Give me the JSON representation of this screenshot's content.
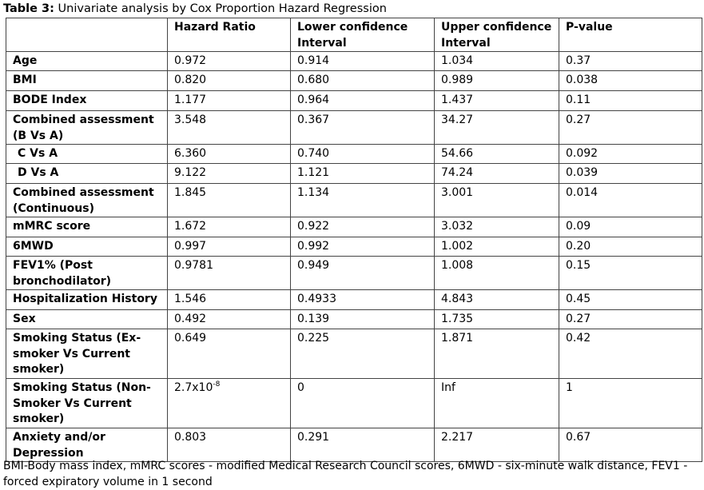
{
  "title_label": "Table 3:",
  "title_text": " Univariate analysis by Cox Proportion Hazard Regression",
  "headers": [
    "",
    "Hazard Ratio",
    "Lower confidence Interval",
    "Upper confidence Interval",
    "P-value"
  ],
  "rows": [
    {
      "label": "Age",
      "hr": "0.972",
      "lower": "0.914",
      "upper": "1.034",
      "p": "0.37",
      "h": 24
    },
    {
      "label": "BMI",
      "hr": "0.820",
      "lower": "0.680",
      "upper": "0.989",
      "p": "0.038",
      "h": 25
    },
    {
      "label": "BODE Index",
      "hr": "1.177",
      "lower": "0.964",
      "upper": "1.437",
      "p": "0.11",
      "h": 25
    },
    {
      "label": "Combined assessment (B Vs A)",
      "hr": "3.548",
      "lower": "0.367",
      "upper": "34.27",
      "p": "0.27",
      "h": 41
    },
    {
      "label": "C Vs A",
      "hr": "6.360",
      "lower": "0.740",
      "upper": "54.66",
      "p": "0.092",
      "h": 24,
      "indent": true
    },
    {
      "label": "D Vs A",
      "hr": "9.122",
      "lower": "1.121",
      "upper": "74.24",
      "p": "0.039",
      "h": 25,
      "indent": true
    },
    {
      "label": "Combined assessment (Continuous)",
      "hr": "1.845",
      "lower": "1.134",
      "upper": "3.001",
      "p": "0.014",
      "h": 41
    },
    {
      "label": "mMRC score",
      "hr": "1.672",
      "lower": "0.922",
      "upper": "3.032",
      "p": "0.09",
      "h": 25
    },
    {
      "label": "6MWD",
      "hr": "0.997",
      "lower": "0.992",
      "upper": "1.002",
      "p": "0.20",
      "h": 24
    },
    {
      "label": "FEV1% (Post bronchodilator)",
      "hr": "0.9781",
      "lower": "0.949",
      "upper": "1.008",
      "p": "0.15",
      "h": 41
    },
    {
      "label": "Hospitalization History",
      "hr": "1.546",
      "lower": "0.4933",
      "upper": "4.843",
      "p": "0.45",
      "h": 25
    },
    {
      "label": "Sex",
      "hr": "0.492",
      "lower": "0.139",
      "upper": "1.735",
      "p": "0.27",
      "h": 24
    },
    {
      "label": "Smoking Status (Ex-smoker Vs Current smoker)",
      "hr": "0.649",
      "lower": "0.225",
      "upper": "1.871",
      "p": "0.42",
      "h": 62
    },
    {
      "label": "Smoking Status (Non-Smoker Vs Current smoker)",
      "hr": "2.7x10",
      "hr_exp": "-8",
      "lower": "0",
      "upper": "Inf",
      "p": "1",
      "h": 62
    },
    {
      "label": "Anxiety and/or Depression",
      "hr": "0.803",
      "lower": "0.291",
      "upper": "2.217",
      "p": "0.67",
      "h": 41
    }
  ],
  "footnote": "BMI-Body mass index, mMRC scores - modified Medical Research Council scores, 6MWD - six-minute walk distance, FEV1 - forced expiratory volume in 1 second"
}
